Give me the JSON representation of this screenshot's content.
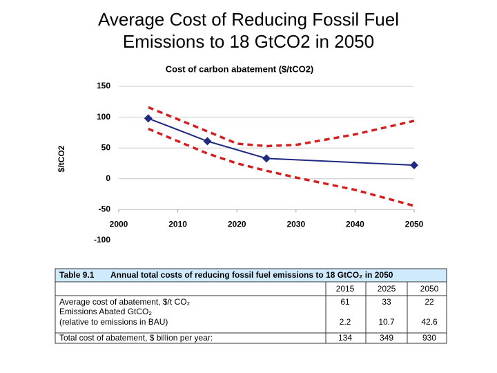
{
  "slide_title": [
    "Average Cost of Reducing Fossil Fuel",
    "Emissions to 18 GtCO2 in 2050"
  ],
  "chart_data": {
    "type": "line",
    "title": "Cost of carbon abatement ($/tCO2)",
    "y_label": "$/tCO2",
    "xlim": [
      2000,
      2050
    ],
    "xticks": [
      2000,
      2010,
      2020,
      2030,
      2040,
      2050
    ],
    "ylim": [
      -100,
      150
    ],
    "yticks": [
      -100,
      -50,
      0,
      50,
      100,
      150
    ],
    "grid": true,
    "series": [
      {
        "color": "#1f2a80",
        "linestyle": "solid",
        "marker": "diamond",
        "x": [
          2005,
          2015,
          2025,
          2050
        ],
        "values": [
          98,
          61,
          33,
          22
        ]
      },
      {
        "color": "#d42020",
        "linestyle": "dashed",
        "x": [
          2005,
          2015,
          2020,
          2025,
          2030,
          2040,
          2050
        ],
        "values": [
          116,
          77,
          57,
          53,
          55,
          72,
          94
        ]
      },
      {
        "color": "#d42020",
        "linestyle": "dashed",
        "x": [
          2005,
          2015,
          2020,
          2025,
          2030,
          2040,
          2050
        ],
        "values": [
          81,
          41,
          25,
          13,
          2,
          -18,
          -44
        ]
      }
    ]
  },
  "table": {
    "number": "Table 9.1",
    "caption": "Annual total costs of reducing fossil fuel emissions to 18 GtCO₂ in 2050",
    "columns": [
      "2015",
      "2025",
      "2050"
    ],
    "rows": [
      {
        "label": [
          "Average cost of abatement, $/t CO₂"
        ],
        "values": [
          61,
          33,
          22
        ]
      },
      {
        "label": [
          "Emissions Abated GtCO₂",
          "(relative to emissions in BAU)"
        ],
        "values": [
          2.2,
          10.7,
          42.6
        ]
      },
      {
        "label": [
          "Total cost of abatement, $ billion per year:"
        ],
        "values": [
          134,
          349,
          930
        ]
      }
    ]
  }
}
